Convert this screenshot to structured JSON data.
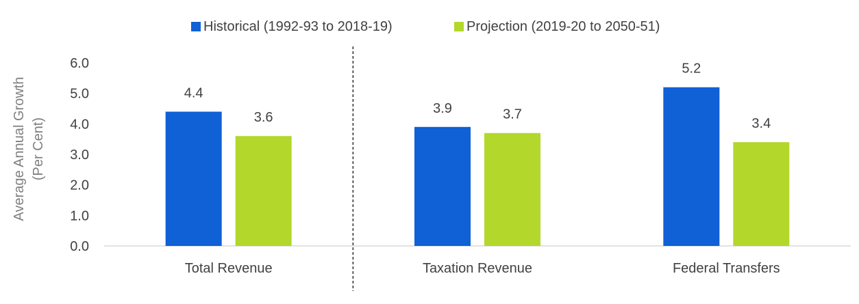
{
  "chart_data": {
    "type": "bar",
    "title": "",
    "categories": [
      "Total Revenue",
      "Taxation Revenue",
      "Federal Transfers"
    ],
    "series": [
      {
        "name": "Historical (1992-93 to 2018-19)",
        "color": "#1060D6",
        "values": [
          4.4,
          3.9,
          5.2
        ]
      },
      {
        "name": "Projection (2019-20 to 2050-51)",
        "color": "#B3D72B",
        "values": [
          3.6,
          3.7,
          3.4
        ]
      }
    ],
    "data_labels": [
      [
        "4.4",
        "3.9",
        "5.2"
      ],
      [
        "3.6",
        "3.7",
        "3.4"
      ]
    ],
    "xlabel": "",
    "ylabel_lines": [
      "Average Annual Growth",
      "(Per Cent)"
    ],
    "ylim": [
      0,
      6
    ],
    "yticks": [
      0,
      1,
      2,
      3,
      4,
      5,
      6
    ],
    "ytick_labels": [
      "0.0",
      "1.0",
      "2.0",
      "3.0",
      "4.0",
      "5.0",
      "6.0"
    ],
    "grid": false,
    "legend_position": "top-center",
    "divider_after_category": "Total Revenue"
  }
}
